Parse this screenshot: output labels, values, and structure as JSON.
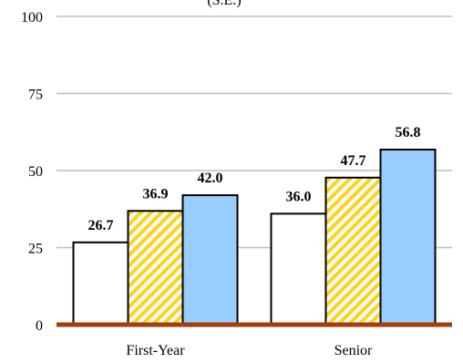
{
  "chart_data": {
    "type": "bar",
    "title_fragment": "(S.E.)",
    "categories": [
      "First-Year",
      "Senior"
    ],
    "series": [
      {
        "values": [
          26.7,
          36.0
        ],
        "fill": "#ffffff",
        "pattern": "none"
      },
      {
        "values": [
          36.9,
          47.7
        ],
        "fill": "#ffd21f",
        "pattern": "diagonal-hatch"
      },
      {
        "values": [
          42.0,
          56.8
        ],
        "fill": "#99ccff",
        "pattern": "none"
      }
    ],
    "value_labels": [
      [
        "26.7",
        "36.0"
      ],
      [
        "36.9",
        "47.7"
      ],
      [
        "42.0",
        "56.8"
      ]
    ],
    "yticks": [
      "0",
      "25",
      "50",
      "75",
      "100"
    ],
    "ylim": [
      0,
      100
    ],
    "grid": true,
    "baseline_color": "#a0400f",
    "grid_color": "#bfbfbf"
  }
}
